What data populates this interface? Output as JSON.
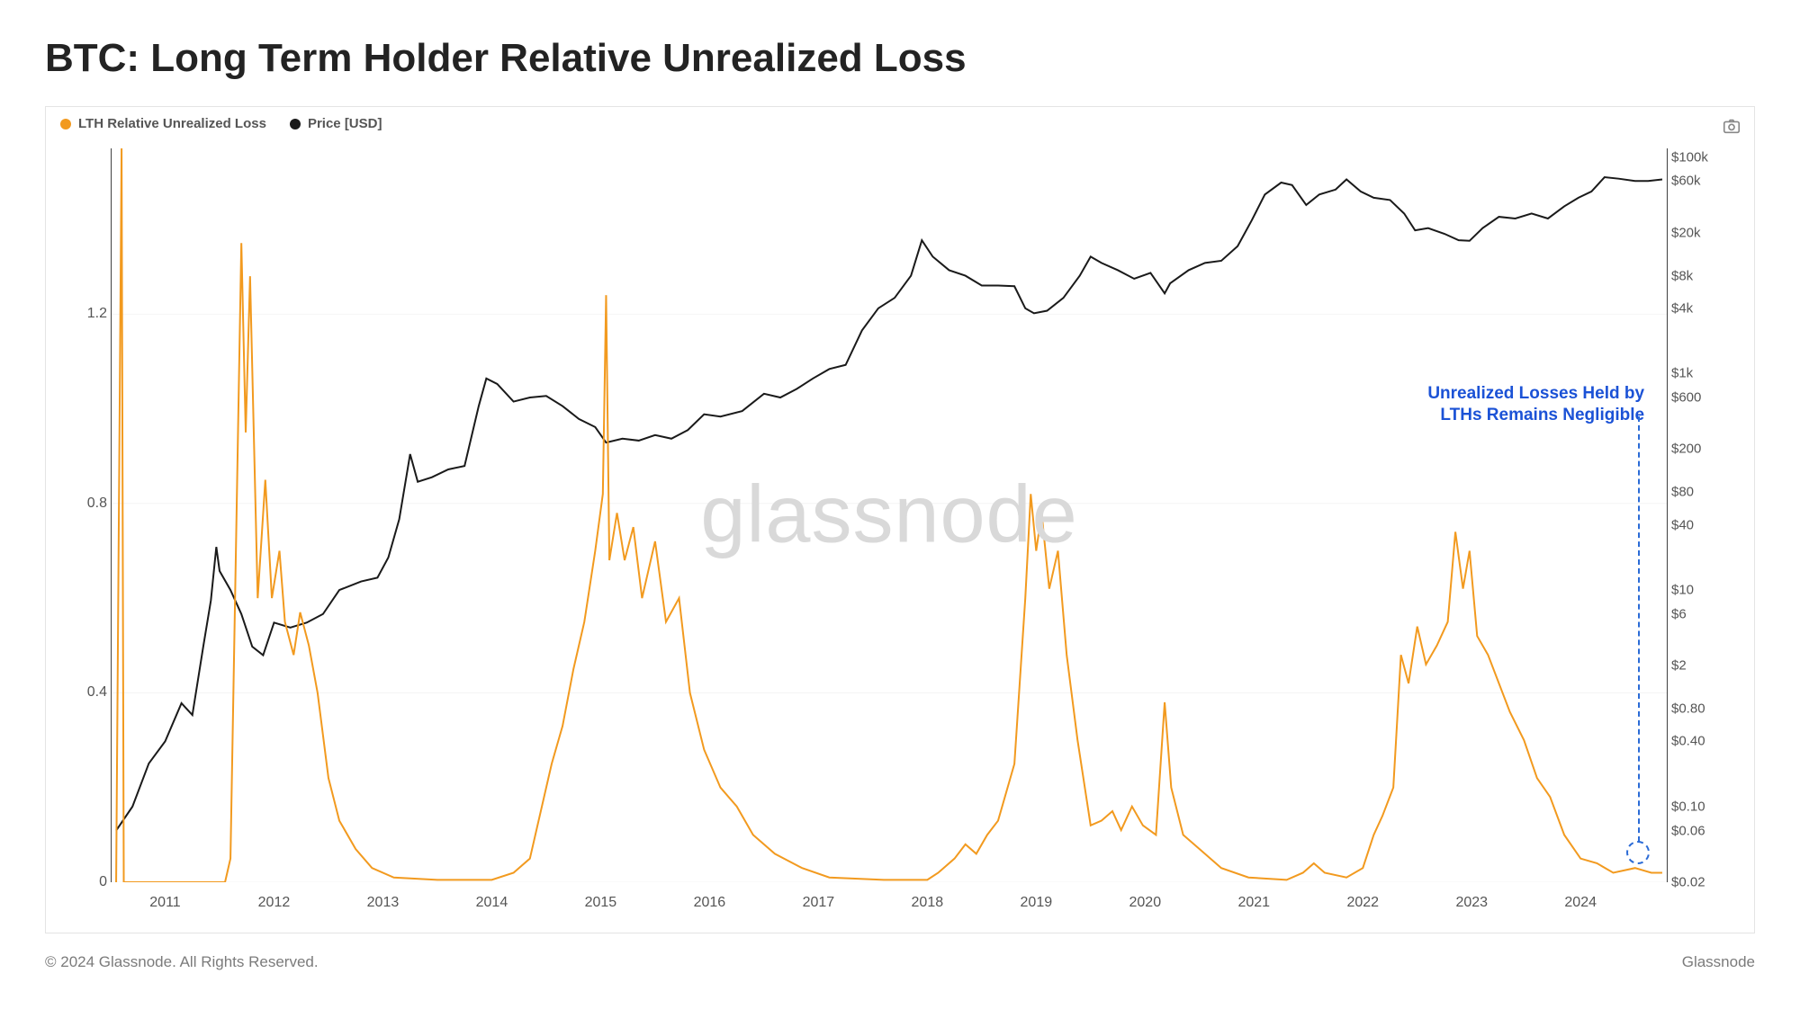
{
  "title": "BTC: Long Term Holder Relative Unrealized Loss",
  "footer": {
    "copyright": "© 2024 Glassnode. All Rights Reserved.",
    "brand": "Glassnode"
  },
  "watermark": "glassnode",
  "legend": {
    "series1": {
      "label": "LTH Relative Unrealized Loss",
      "color": "#f29a1f"
    },
    "series2": {
      "label": "Price [USD]",
      "color": "#1a1a1a"
    }
  },
  "annotation": {
    "line1": "Unrealized Losses Held by",
    "line2": "LTHs Remains Negligible",
    "color": "#1b52d6",
    "xn": 0.985,
    "yn_top": 0.32,
    "marker_xn": 0.981,
    "marker_yn": 0.96,
    "dash_from_yn": 0.365,
    "dash_to_yn": 0.945
  },
  "chart": {
    "type": "dual-axis-line",
    "background_color": "#ffffff",
    "grid_color": "#f2f2f2",
    "x": {
      "min": 2010.5,
      "max": 2024.8,
      "ticks": [
        2011,
        2012,
        2013,
        2014,
        2015,
        2016,
        2017,
        2018,
        2019,
        2020,
        2021,
        2022,
        2023,
        2024
      ],
      "tick_labels": [
        "2011",
        "2012",
        "2013",
        "2014",
        "2015",
        "2016",
        "2017",
        "2018",
        "2019",
        "2020",
        "2021",
        "2022",
        "2023",
        "2024"
      ],
      "label_fontsize": 16,
      "label_color": "#555555"
    },
    "y_left": {
      "min": 0,
      "max": 1.55,
      "scale": "linear",
      "ticks": [
        0,
        0.4,
        0.8,
        1.2
      ],
      "tick_labels": [
        "0",
        "0.4",
        "0.8",
        "1.2"
      ],
      "label_fontsize": 16
    },
    "y_right": {
      "min": 0.02,
      "max": 120000,
      "scale": "log",
      "ticks": [
        0.02,
        0.06,
        0.1,
        0.4,
        0.8,
        2,
        6,
        10,
        40,
        80,
        200,
        600,
        1000,
        4000,
        8000,
        20000,
        60000,
        100000
      ],
      "tick_labels": [
        "$0.02",
        "$0.06",
        "$0.10",
        "$0.40",
        "$0.80",
        "$2",
        "$6",
        "$10",
        "$40",
        "$80",
        "$200",
        "$600",
        "$1k",
        "$4k",
        "$8k",
        "$20k",
        "$60k",
        "$100k"
      ],
      "label_fontsize": 15
    },
    "series_loss": {
      "color": "#f29a1f",
      "line_width": 2,
      "points": [
        [
          2010.55,
          0
        ],
        [
          2010.6,
          1.55
        ],
        [
          2010.62,
          0
        ],
        [
          2010.75,
          0
        ],
        [
          2011.55,
          0
        ],
        [
          2011.6,
          0.05
        ],
        [
          2011.7,
          1.35
        ],
        [
          2011.74,
          0.95
        ],
        [
          2011.78,
          1.28
        ],
        [
          2011.85,
          0.6
        ],
        [
          2011.92,
          0.85
        ],
        [
          2011.98,
          0.6
        ],
        [
          2012.05,
          0.7
        ],
        [
          2012.1,
          0.55
        ],
        [
          2012.18,
          0.48
        ],
        [
          2012.24,
          0.57
        ],
        [
          2012.32,
          0.5
        ],
        [
          2012.4,
          0.4
        ],
        [
          2012.5,
          0.22
        ],
        [
          2012.6,
          0.13
        ],
        [
          2012.75,
          0.07
        ],
        [
          2012.9,
          0.03
        ],
        [
          2013.1,
          0.01
        ],
        [
          2013.5,
          0.005
        ],
        [
          2014.0,
          0.005
        ],
        [
          2014.2,
          0.02
        ],
        [
          2014.35,
          0.05
        ],
        [
          2014.55,
          0.25
        ],
        [
          2014.65,
          0.33
        ],
        [
          2014.75,
          0.45
        ],
        [
          2014.85,
          0.55
        ],
        [
          2014.95,
          0.7
        ],
        [
          2015.02,
          0.82
        ],
        [
          2015.05,
          1.24
        ],
        [
          2015.08,
          0.68
        ],
        [
          2015.15,
          0.78
        ],
        [
          2015.22,
          0.68
        ],
        [
          2015.3,
          0.75
        ],
        [
          2015.38,
          0.6
        ],
        [
          2015.5,
          0.72
        ],
        [
          2015.6,
          0.55
        ],
        [
          2015.72,
          0.6
        ],
        [
          2015.82,
          0.4
        ],
        [
          2015.95,
          0.28
        ],
        [
          2016.1,
          0.2
        ],
        [
          2016.25,
          0.16
        ],
        [
          2016.4,
          0.1
        ],
        [
          2016.6,
          0.06
        ],
        [
          2016.85,
          0.03
        ],
        [
          2017.1,
          0.01
        ],
        [
          2017.6,
          0.005
        ],
        [
          2018.0,
          0.005
        ],
        [
          2018.1,
          0.02
        ],
        [
          2018.25,
          0.05
        ],
        [
          2018.35,
          0.08
        ],
        [
          2018.45,
          0.06
        ],
        [
          2018.55,
          0.1
        ],
        [
          2018.65,
          0.13
        ],
        [
          2018.8,
          0.25
        ],
        [
          2018.9,
          0.6
        ],
        [
          2018.95,
          0.82
        ],
        [
          2019.0,
          0.7
        ],
        [
          2019.05,
          0.78
        ],
        [
          2019.12,
          0.62
        ],
        [
          2019.2,
          0.7
        ],
        [
          2019.28,
          0.48
        ],
        [
          2019.38,
          0.3
        ],
        [
          2019.5,
          0.12
        ],
        [
          2019.6,
          0.13
        ],
        [
          2019.7,
          0.15
        ],
        [
          2019.78,
          0.11
        ],
        [
          2019.88,
          0.16
        ],
        [
          2019.98,
          0.12
        ],
        [
          2020.1,
          0.1
        ],
        [
          2020.18,
          0.38
        ],
        [
          2020.24,
          0.2
        ],
        [
          2020.35,
          0.1
        ],
        [
          2020.5,
          0.07
        ],
        [
          2020.7,
          0.03
        ],
        [
          2020.95,
          0.01
        ],
        [
          2021.3,
          0.005
        ],
        [
          2021.45,
          0.02
        ],
        [
          2021.55,
          0.04
        ],
        [
          2021.65,
          0.02
        ],
        [
          2021.85,
          0.01
        ],
        [
          2022.0,
          0.03
        ],
        [
          2022.1,
          0.1
        ],
        [
          2022.18,
          0.14
        ],
        [
          2022.28,
          0.2
        ],
        [
          2022.35,
          0.48
        ],
        [
          2022.42,
          0.42
        ],
        [
          2022.5,
          0.54
        ],
        [
          2022.58,
          0.46
        ],
        [
          2022.68,
          0.5
        ],
        [
          2022.78,
          0.55
        ],
        [
          2022.85,
          0.74
        ],
        [
          2022.92,
          0.62
        ],
        [
          2022.98,
          0.7
        ],
        [
          2023.05,
          0.52
        ],
        [
          2023.15,
          0.48
        ],
        [
          2023.25,
          0.42
        ],
        [
          2023.35,
          0.36
        ],
        [
          2023.48,
          0.3
        ],
        [
          2023.6,
          0.22
        ],
        [
          2023.72,
          0.18
        ],
        [
          2023.85,
          0.1
        ],
        [
          2024.0,
          0.05
        ],
        [
          2024.15,
          0.04
        ],
        [
          2024.3,
          0.02
        ],
        [
          2024.5,
          0.03
        ],
        [
          2024.65,
          0.02
        ],
        [
          2024.75,
          0.02
        ]
      ]
    },
    "series_price": {
      "color": "#1a1a1a",
      "line_width": 2,
      "points": [
        [
          2010.55,
          0.06
        ],
        [
          2010.7,
          0.1
        ],
        [
          2010.85,
          0.25
        ],
        [
          2011.0,
          0.4
        ],
        [
          2011.15,
          0.9
        ],
        [
          2011.25,
          0.7
        ],
        [
          2011.35,
          3.0
        ],
        [
          2011.42,
          8.0
        ],
        [
          2011.47,
          25.0
        ],
        [
          2011.5,
          15.0
        ],
        [
          2011.6,
          10.0
        ],
        [
          2011.7,
          6.0
        ],
        [
          2011.8,
          3.0
        ],
        [
          2011.9,
          2.5
        ],
        [
          2012.0,
          5.0
        ],
        [
          2012.15,
          4.5
        ],
        [
          2012.3,
          5.0
        ],
        [
          2012.45,
          6.0
        ],
        [
          2012.6,
          10.0
        ],
        [
          2012.8,
          12.0
        ],
        [
          2012.95,
          13.0
        ],
        [
          2013.05,
          20.0
        ],
        [
          2013.15,
          45.0
        ],
        [
          2013.25,
          180.0
        ],
        [
          2013.32,
          100.0
        ],
        [
          2013.45,
          110.0
        ],
        [
          2013.6,
          130.0
        ],
        [
          2013.75,
          140.0
        ],
        [
          2013.88,
          500.0
        ],
        [
          2013.95,
          900.0
        ],
        [
          2014.05,
          800.0
        ],
        [
          2014.2,
          550.0
        ],
        [
          2014.35,
          600.0
        ],
        [
          2014.5,
          620.0
        ],
        [
          2014.65,
          500.0
        ],
        [
          2014.8,
          380.0
        ],
        [
          2014.95,
          320.0
        ],
        [
          2015.05,
          230.0
        ],
        [
          2015.2,
          250.0
        ],
        [
          2015.35,
          240.0
        ],
        [
          2015.5,
          270.0
        ],
        [
          2015.65,
          250.0
        ],
        [
          2015.8,
          300.0
        ],
        [
          2015.95,
          420.0
        ],
        [
          2016.1,
          400.0
        ],
        [
          2016.3,
          450.0
        ],
        [
          2016.5,
          650.0
        ],
        [
          2016.65,
          600.0
        ],
        [
          2016.8,
          720.0
        ],
        [
          2016.95,
          900.0
        ],
        [
          2017.1,
          1100.0
        ],
        [
          2017.25,
          1200.0
        ],
        [
          2017.4,
          2500.0
        ],
        [
          2017.55,
          4000.0
        ],
        [
          2017.7,
          5000.0
        ],
        [
          2017.85,
          8000.0
        ],
        [
          2017.95,
          17000.0
        ],
        [
          2018.05,
          12000.0
        ],
        [
          2018.2,
          9000.0
        ],
        [
          2018.35,
          8000.0
        ],
        [
          2018.5,
          6500.0
        ],
        [
          2018.65,
          6500.0
        ],
        [
          2018.8,
          6400.0
        ],
        [
          2018.9,
          4000.0
        ],
        [
          2018.98,
          3600.0
        ],
        [
          2019.1,
          3800.0
        ],
        [
          2019.25,
          5000.0
        ],
        [
          2019.4,
          8000.0
        ],
        [
          2019.5,
          12000.0
        ],
        [
          2019.6,
          10500.0
        ],
        [
          2019.75,
          9000.0
        ],
        [
          2019.9,
          7500.0
        ],
        [
          2020.05,
          8500.0
        ],
        [
          2020.18,
          5500.0
        ],
        [
          2020.23,
          6800.0
        ],
        [
          2020.4,
          9000.0
        ],
        [
          2020.55,
          10500.0
        ],
        [
          2020.7,
          11000.0
        ],
        [
          2020.85,
          15000.0
        ],
        [
          2020.98,
          26000.0
        ],
        [
          2021.1,
          45000.0
        ],
        [
          2021.25,
          58000.0
        ],
        [
          2021.35,
          55000.0
        ],
        [
          2021.48,
          36000.0
        ],
        [
          2021.6,
          45000.0
        ],
        [
          2021.75,
          50000.0
        ],
        [
          2021.85,
          62000.0
        ],
        [
          2021.98,
          48000.0
        ],
        [
          2022.1,
          42000.0
        ],
        [
          2022.25,
          40000.0
        ],
        [
          2022.38,
          30000.0
        ],
        [
          2022.48,
          21000.0
        ],
        [
          2022.6,
          22000.0
        ],
        [
          2022.75,
          19500.0
        ],
        [
          2022.88,
          17000.0
        ],
        [
          2022.98,
          16800.0
        ],
        [
          2023.1,
          22000.0
        ],
        [
          2023.25,
          28000.0
        ],
        [
          2023.4,
          27000.0
        ],
        [
          2023.55,
          30000.0
        ],
        [
          2023.7,
          27000.0
        ],
        [
          2023.85,
          35000.0
        ],
        [
          2023.98,
          42000.0
        ],
        [
          2024.1,
          48000.0
        ],
        [
          2024.22,
          65000.0
        ],
        [
          2024.35,
          63000.0
        ],
        [
          2024.5,
          60000.0
        ],
        [
          2024.62,
          60000.0
        ],
        [
          2024.75,
          62000.0
        ]
      ]
    }
  }
}
